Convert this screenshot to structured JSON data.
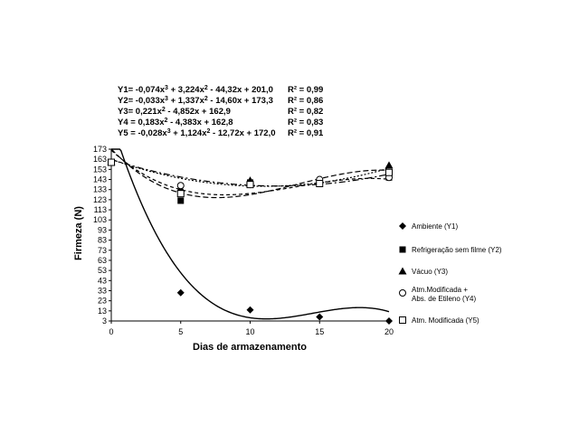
{
  "chart_data": {
    "type": "scatter",
    "xlabel": "Dias de armazenamento",
    "ylabel": "Firmeza (N)",
    "xlim": [
      0,
      20
    ],
    "ylim": [
      3,
      173
    ],
    "x_ticks": [
      "0",
      "5",
      "10",
      "15",
      "20"
    ],
    "y_ticks": [
      "173",
      "163",
      "153",
      "143",
      "133",
      "123",
      "113",
      "103",
      "93",
      "83",
      "73",
      "63",
      "53",
      "43",
      "33",
      "23",
      "13",
      "3"
    ],
    "grid": false,
    "legend_position": "right",
    "equations": [
      {
        "formula": "Y1= -0,074x3 + 3,224x2 - 44,32x + 201,0",
        "r2": "R² = 0,99"
      },
      {
        "formula": "Y2= -0,033x3 + 1,337x2 - 14,60x + 173,3",
        "r2": "R² = 0,86"
      },
      {
        "formula": "Y3= 0,221x2 - 4,852x + 162,9",
        "r2": "R² = 0,82"
      },
      {
        "formula": "Y4 = 0,183x2 - 4,383x + 162,8",
        "r2": "R² = 0,83"
      },
      {
        "formula": "Y5 = -0,028x3 + 1,124x2 - 12,72x + 172,0",
        "r2": "R² = 0,91"
      }
    ],
    "series": [
      {
        "name": "Ambiente  (Y1)",
        "marker": "diamond",
        "line": "solid",
        "x": [
          0,
          5,
          10,
          15,
          20
        ],
        "y": [
          160,
          31,
          14,
          7,
          3
        ],
        "coefs": [
          201.0,
          -44.32,
          3.224,
          -0.074
        ]
      },
      {
        "name": "Refrigeração sem filme (Y2)",
        "marker": "square",
        "line": "dash",
        "x": [
          0,
          5,
          10,
          15,
          20
        ],
        "y": [
          160,
          122,
          140,
          140,
          145
        ],
        "coefs": [
          173.3,
          -14.6,
          1.337,
          -0.033
        ]
      },
      {
        "name": "Vácuo (Y3)",
        "marker": "triangle",
        "line": "dot",
        "x": [
          0,
          5,
          10,
          15,
          20
        ],
        "y": [
          160,
          134,
          142,
          142,
          157
        ],
        "coefs": [
          162.9,
          -4.852,
          0.221
        ]
      },
      {
        "name": "Atm.Modificada  +\nAbs. de  Etileno (Y4)",
        "marker": "circle",
        "line": "dashdot",
        "x": [
          0,
          5,
          10,
          15,
          20
        ],
        "y": [
          160,
          137,
          138,
          143,
          145
        ],
        "coefs": [
          162.8,
          -4.383,
          0.183
        ]
      },
      {
        "name": "Atm. Modificada (Y5)",
        "marker": "open-square",
        "line": "dash2",
        "x": [
          0,
          5,
          10,
          15,
          20
        ],
        "y": [
          160,
          129,
          138,
          139,
          150
        ],
        "coefs": [
          172.0,
          -12.72,
          1.124,
          -0.028
        ]
      }
    ]
  }
}
